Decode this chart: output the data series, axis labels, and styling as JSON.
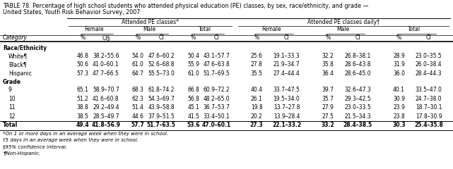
{
  "title_line1": "TABLE 78. Percentage of high school students who attended physical education (PE) classes, by sex, race/ethnicity, and grade —",
  "title_line2": "United States, Youth Risk Behavior Survey, 2007",
  "header1": [
    "Attended PE classes*",
    "Attended PE classes daily†"
  ],
  "header2": [
    "Female",
    "Male",
    "Total",
    "Female",
    "Male",
    "Total"
  ],
  "header3_label": "Category",
  "header3": [
    "%",
    "CI§",
    "%",
    "CI",
    "%",
    "CI",
    "%",
    "CI",
    "%",
    "CI",
    "%",
    "CI"
  ],
  "section1": "Race/Ethnicity",
  "section2": "Grade",
  "rows": [
    {
      "label": "White¶",
      "indent": true,
      "bold": false,
      "vals": [
        "46.8",
        "38.2–55.6",
        "54.0",
        "47.6–60.2",
        "50.4",
        "43.1–57.7",
        "25.6",
        "19.1–33.3",
        "32.2",
        "26.8–38.1",
        "28.9",
        "23.0–35.5"
      ]
    },
    {
      "label": "Black¶",
      "indent": true,
      "bold": false,
      "vals": [
        "50.6",
        "41.0–60.1",
        "61.0",
        "52.6–68.8",
        "55.9",
        "47.6–63.8",
        "27.8",
        "21.9–34.7",
        "35.8",
        "28.6–43.8",
        "31.9",
        "26.0–38.4"
      ]
    },
    {
      "label": "Hispanic",
      "indent": true,
      "bold": false,
      "vals": [
        "57.3",
        "47.7–66.5",
        "64.7",
        "55.5–73.0",
        "61.0",
        "51.7–69.5",
        "35.5",
        "27.4–44.4",
        "36.4",
        "28.6–45.0",
        "36.0",
        "28.4–44.3"
      ]
    },
    {
      "label": "9",
      "indent": true,
      "bold": false,
      "vals": [
        "65.1",
        "58.9–70.7",
        "68.3",
        "61.8–74.2",
        "66.8",
        "60.9–72.2",
        "40.4",
        "33.7–47.5",
        "39.7",
        "32.6–47.3",
        "40.1",
        "33.5–47.0"
      ]
    },
    {
      "label": "10",
      "indent": true,
      "bold": false,
      "vals": [
        "51.2",
        "41.6–60.8",
        "62.3",
        "54.3–69.7",
        "56.8",
        "48.2–65.0",
        "26.1",
        "19.5–34.0",
        "35.7",
        "29.3–42.5",
        "30.9",
        "24.7–38.0"
      ]
    },
    {
      "label": "11",
      "indent": true,
      "bold": false,
      "vals": [
        "38.8",
        "29.2–49.4",
        "51.4",
        "43.9–58.8",
        "45.1",
        "36.7–53.7",
        "19.8",
        "13.7–27.8",
        "27.9",
        "23.0–33.5",
        "23.9",
        "18.7–30.1"
      ]
    },
    {
      "label": "12",
      "indent": true,
      "bold": false,
      "vals": [
        "38.5",
        "28.5–49.7",
        "44.6",
        "37.9–51.5",
        "41.5",
        "33.4–50.1",
        "20.2",
        "13.9–28.4",
        "27.5",
        "21.5–34.3",
        "23.8",
        "17.8–30.9"
      ]
    },
    {
      "label": "Total",
      "indent": false,
      "bold": true,
      "vals": [
        "49.4",
        "41.8–56.9",
        "57.7",
        "51.7–63.5",
        "53.6",
        "47.0–60.1",
        "27.3",
        "22.1–33.2",
        "33.2",
        "28.4–38.5",
        "30.3",
        "25.4–35.8"
      ]
    }
  ],
  "footnotes": [
    "*On 1 or more days in an average week when they were in school.",
    "†5 days in an average week when they were in school.",
    "§95% confidence interval.",
    "¶Non-Hispanic."
  ],
  "bg_color": "#ffffff",
  "font_size": 5.5,
  "title_font_size": 5.8
}
